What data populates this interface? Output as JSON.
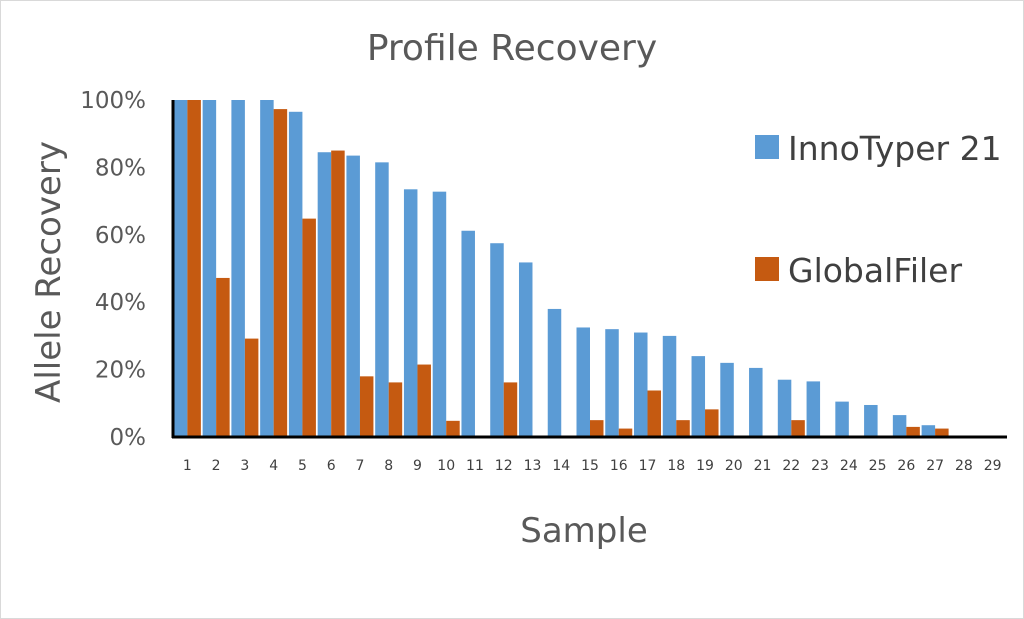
{
  "chart_data": {
    "type": "bar",
    "title": "Profile Recovery",
    "xlabel": "Sample",
    "ylabel": "Allele Recovery",
    "ylim": [
      0,
      100
    ],
    "yticks": [
      "0%",
      "20%",
      "40%",
      "60%",
      "80%",
      "100%"
    ],
    "grid": false,
    "legend_position": "right",
    "categories": [
      "1",
      "2",
      "3",
      "4",
      "5",
      "6",
      "7",
      "8",
      "9",
      "10",
      "11",
      "12",
      "13",
      "14",
      "15",
      "16",
      "17",
      "18",
      "19",
      "20",
      "21",
      "22",
      "23",
      "24",
      "25",
      "26",
      "27",
      "28",
      "29"
    ],
    "series": [
      {
        "name": "InnoTyper 21",
        "color": "#5b9bd5",
        "values": [
          100,
          100,
          100,
          100,
          96.5,
          84.5,
          83.5,
          81.5,
          73.5,
          72.8,
          61.2,
          57.5,
          51.8,
          38,
          32.5,
          32,
          31,
          30,
          24,
          22,
          20.5,
          17,
          16.5,
          10.5,
          9.5,
          6.5,
          3.5,
          0,
          0
        ]
      },
      {
        "name": "GlobalFiler",
        "color": "#c55a11",
        "values": [
          100,
          47.2,
          29.2,
          97.3,
          64.8,
          85,
          18,
          16.2,
          21.5,
          4.8,
          0,
          16.2,
          0,
          0,
          5,
          2.5,
          13.8,
          5,
          8.2,
          0,
          0,
          5,
          0,
          0,
          0,
          3,
          2.5,
          0,
          0
        ]
      }
    ]
  }
}
